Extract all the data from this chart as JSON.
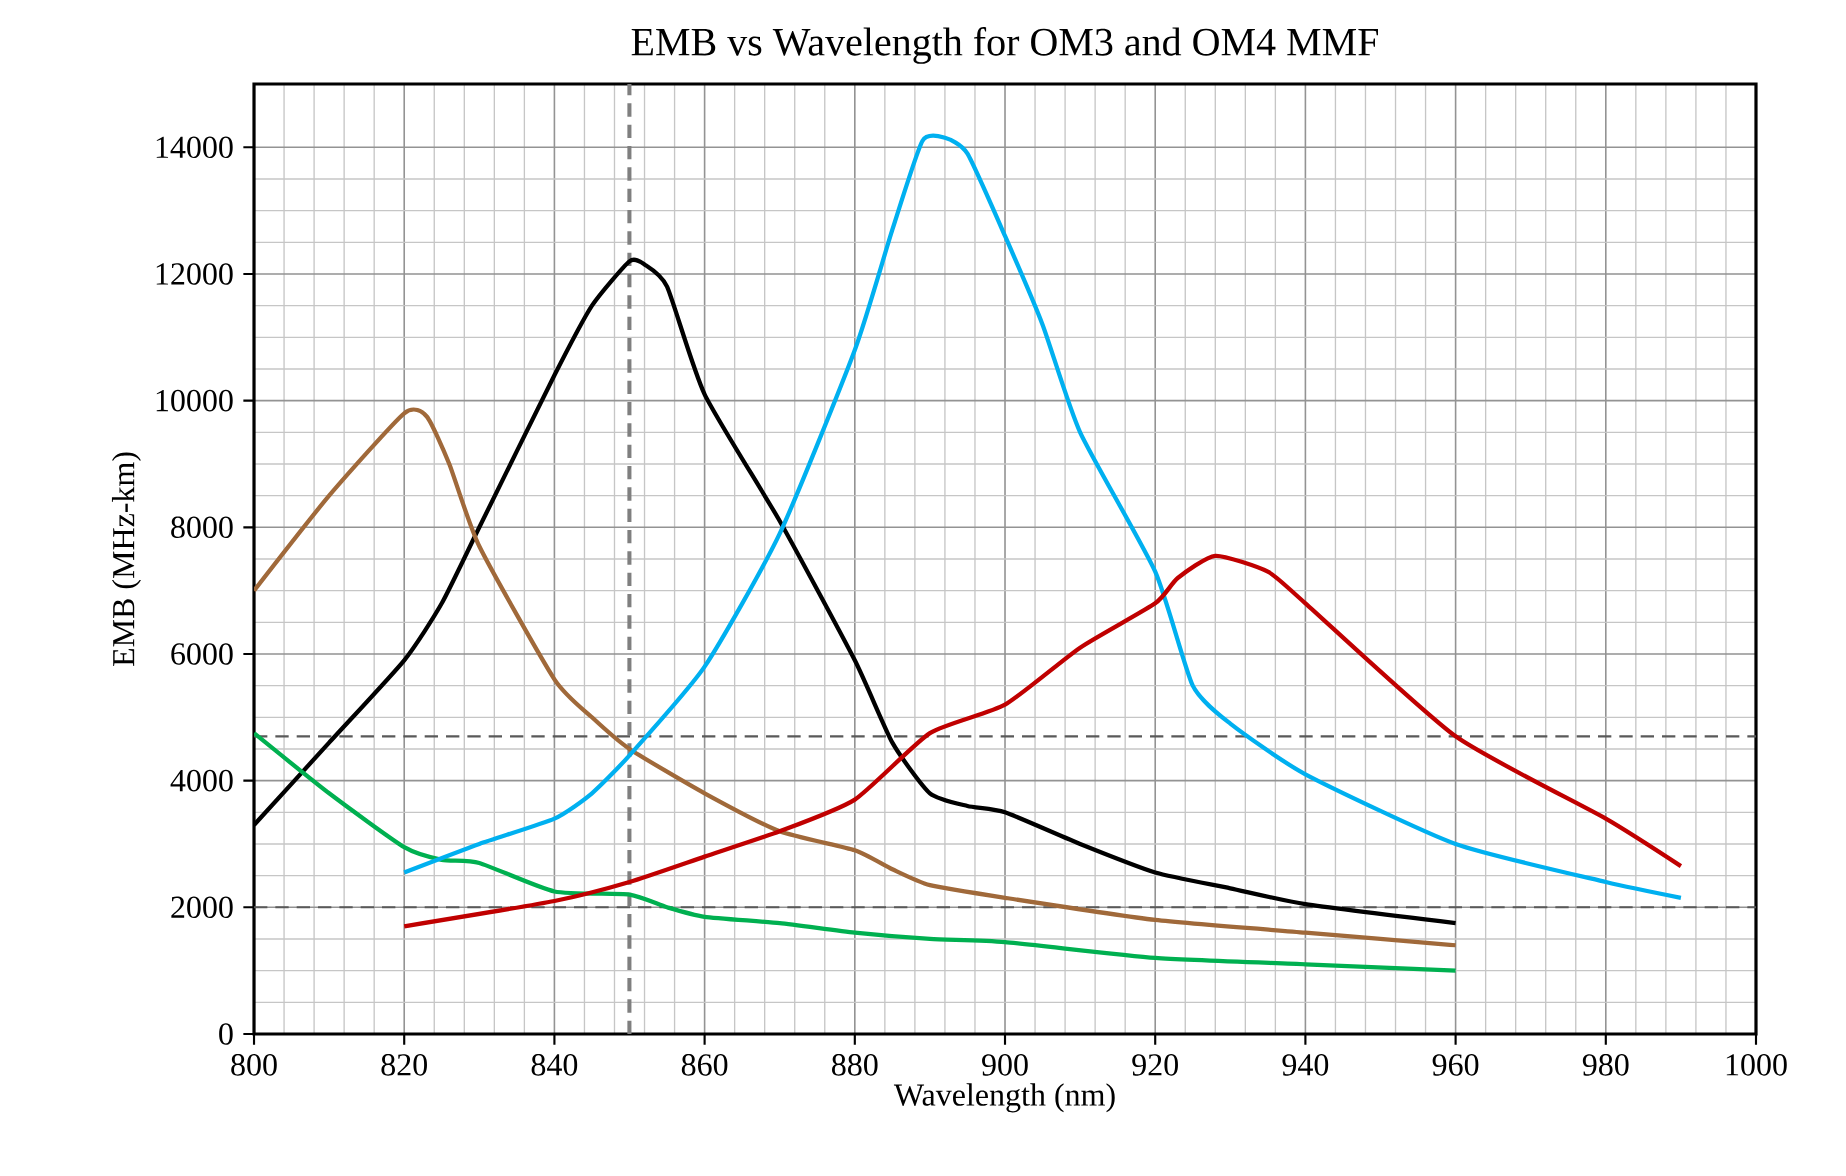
{
  "chart_data": {
    "type": "line",
    "title": "EMB vs Wavelength  for OM3 and OM4 MMF",
    "xlabel": "Wavelength (nm)",
    "ylabel": "EMB (MHz-km)",
    "xlim": [
      800,
      1000
    ],
    "xticks": [
      800,
      820,
      840,
      860,
      880,
      900,
      920,
      940,
      960,
      980,
      1000
    ],
    "ylim": [
      0,
      15000
    ],
    "yticks": [
      0,
      2000,
      4000,
      6000,
      8000,
      10000,
      12000,
      14000
    ],
    "grid": true,
    "marker": "none",
    "line_style": "solid",
    "ref_lines": [
      {
        "axis": "x",
        "value": 850,
        "color": "#7f7f7f",
        "line_style": "dashed"
      },
      {
        "axis": "y",
        "value": 4700,
        "color": "#595959",
        "line_style": "dashed"
      },
      {
        "axis": "y",
        "value": 2000,
        "color": "#595959",
        "line_style": "dashed"
      }
    ],
    "series": [
      {
        "color": "#000000",
        "x": [
          800,
          810,
          820,
          825,
          830,
          840,
          845,
          850,
          852,
          855,
          860,
          870,
          880,
          885,
          890,
          895,
          900,
          910,
          920,
          930,
          940,
          960
        ],
        "values": [
          3300,
          4600,
          5900,
          6800,
          8000,
          10400,
          11500,
          12200,
          12150,
          11800,
          10100,
          8100,
          5900,
          4600,
          3800,
          3600,
          3500,
          3000,
          2550,
          2300,
          2050,
          1750
        ]
      },
      {
        "color": "#a0693a",
        "x": [
          800,
          810,
          820,
          823,
          826,
          830,
          840,
          845,
          850,
          860,
          870,
          880,
          885,
          890,
          900,
          920,
          940,
          960
        ],
        "values": [
          7000,
          8500,
          9800,
          9750,
          9000,
          7700,
          5600,
          5000,
          4500,
          3800,
          3200,
          2900,
          2600,
          2350,
          2150,
          1800,
          1600,
          1400
        ]
      },
      {
        "color": "#00b050",
        "x": [
          800,
          810,
          820,
          825,
          830,
          840,
          850,
          855,
          860,
          870,
          880,
          890,
          900,
          920,
          940,
          960
        ],
        "values": [
          4750,
          3800,
          2950,
          2750,
          2700,
          2250,
          2200,
          2000,
          1850,
          1750,
          1600,
          1500,
          1450,
          1200,
          1100,
          1000
        ]
      },
      {
        "color": "#00b0f0",
        "x": [
          820,
          830,
          840,
          845,
          850,
          860,
          870,
          880,
          885,
          889,
          892,
          895,
          900,
          905,
          910,
          920,
          925,
          930,
          940,
          960,
          980,
          990
        ],
        "values": [
          2550,
          3000,
          3400,
          3800,
          4400,
          5800,
          7900,
          10800,
          12700,
          14100,
          14150,
          13900,
          12600,
          11200,
          9500,
          7300,
          5500,
          4900,
          4100,
          3000,
          2400,
          2150
        ]
      },
      {
        "color": "#c00000",
        "x": [
          820,
          840,
          850,
          860,
          870,
          880,
          890,
          900,
          910,
          920,
          923,
          928,
          935,
          940,
          960,
          980,
          990
        ],
        "values": [
          1700,
          2100,
          2400,
          2800,
          3200,
          3700,
          4750,
          5200,
          6100,
          6800,
          7200,
          7550,
          7300,
          6800,
          4700,
          3400,
          2650
        ]
      }
    ]
  }
}
